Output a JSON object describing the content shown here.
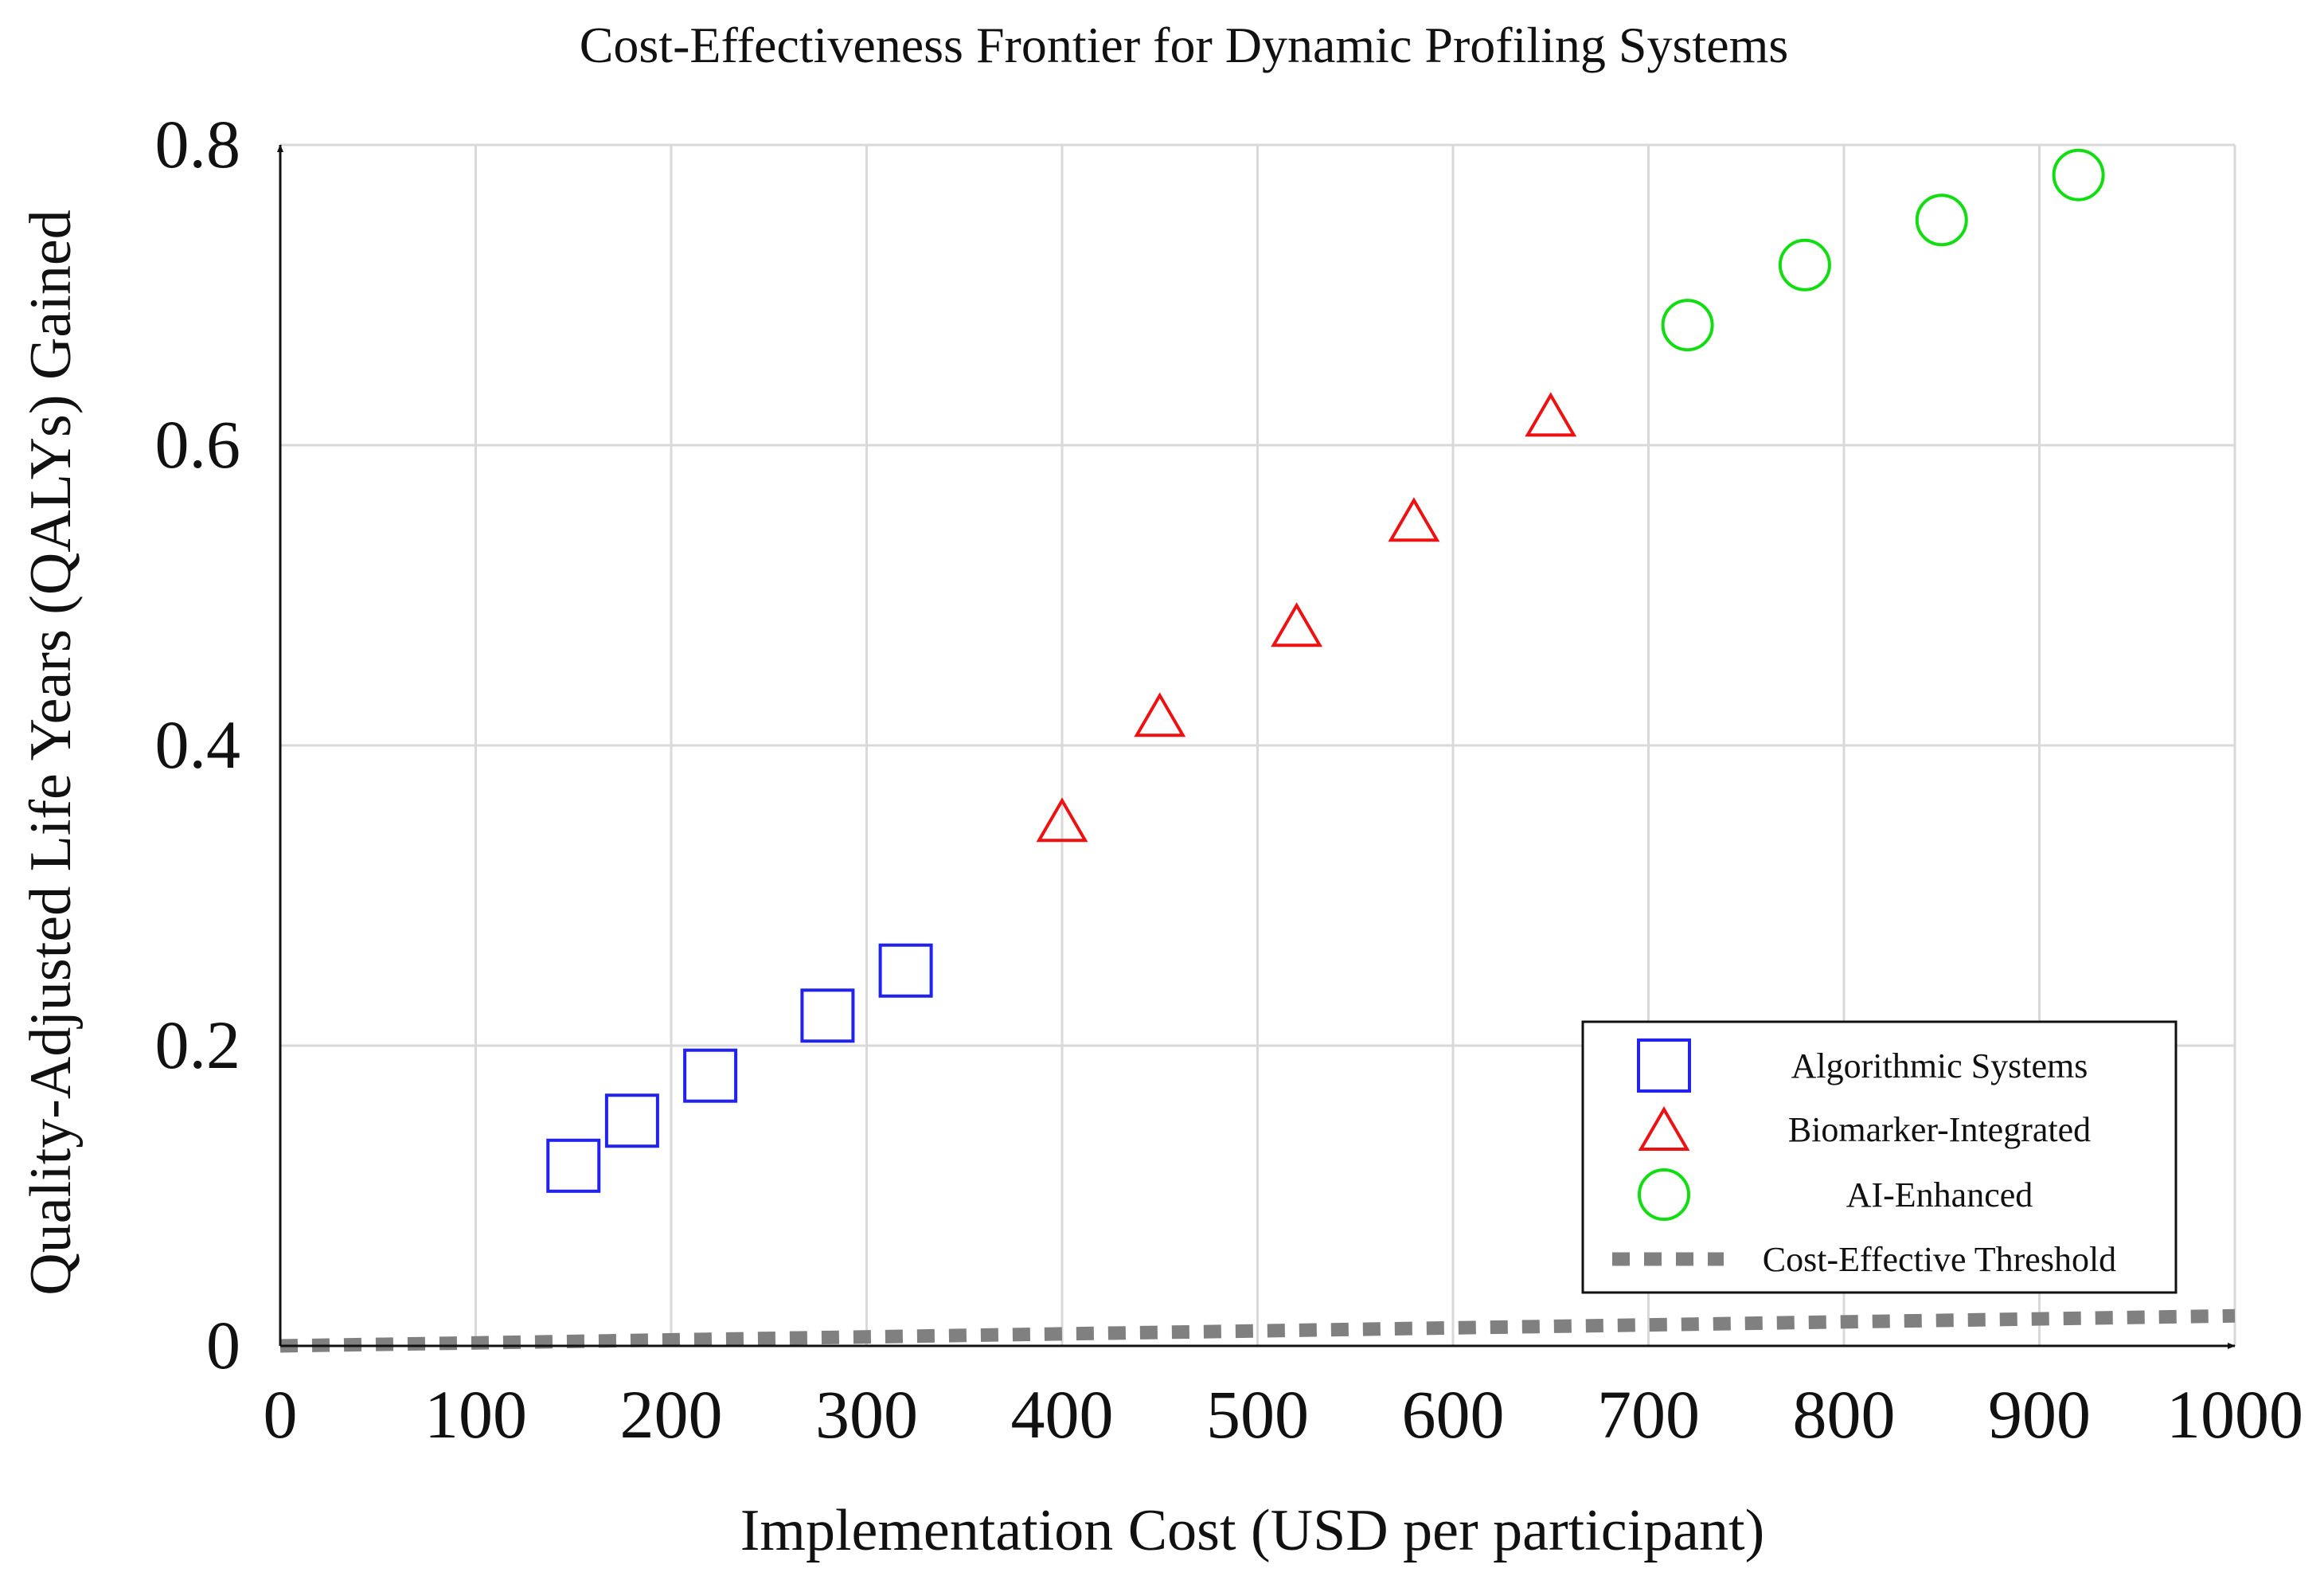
{
  "chart_data": {
    "type": "scatter",
    "title": "Cost-Effectiveness Frontier for Dynamic Profiling Systems",
    "xlabel": "Implementation Cost (USD per participant)",
    "ylabel": "Quality-Adjusted Life Years (QALYs) Gained",
    "xlim": [
      0,
      1000
    ],
    "ylim": [
      0,
      0.8
    ],
    "x_ticks": [
      0,
      100,
      200,
      300,
      400,
      500,
      600,
      700,
      800,
      900,
      1000
    ],
    "y_ticks": [
      0,
      0.2,
      0.4,
      0.6,
      0.8
    ],
    "x_tick_labels": [
      "0",
      "100",
      "200",
      "300",
      "400",
      "500",
      "600",
      "700",
      "800",
      "900",
      "1000"
    ],
    "y_tick_labels": [
      "0",
      "0.2",
      "0.4",
      "0.6",
      "0.8"
    ],
    "grid": true,
    "legend_position": "bottom-right",
    "series": [
      {
        "name": "Algorithmic Systems",
        "marker": "square",
        "color": "#2222ee",
        "points": [
          {
            "x": 150,
            "y": 0.12
          },
          {
            "x": 180,
            "y": 0.15
          },
          {
            "x": 220,
            "y": 0.18
          },
          {
            "x": 280,
            "y": 0.22
          },
          {
            "x": 320,
            "y": 0.25
          }
        ]
      },
      {
        "name": "Biomarker-Integrated",
        "marker": "triangle",
        "color": "#ee1111",
        "points": [
          {
            "x": 400,
            "y": 0.35
          },
          {
            "x": 450,
            "y": 0.42
          },
          {
            "x": 520,
            "y": 0.48
          },
          {
            "x": 580,
            "y": 0.55
          },
          {
            "x": 650,
            "y": 0.62
          }
        ]
      },
      {
        "name": "AI-Enhanced",
        "marker": "circle",
        "color": "#11dd11",
        "points": [
          {
            "x": 720,
            "y": 0.68
          },
          {
            "x": 780,
            "y": 0.72
          },
          {
            "x": 850,
            "y": 0.75
          },
          {
            "x": 920,
            "y": 0.78
          }
        ]
      },
      {
        "name": "Cost-Effective Threshold",
        "marker": "dashed-line",
        "color": "#808080",
        "points": [
          {
            "x": 0,
            "y": 0
          },
          {
            "x": 1000,
            "y": 0.02
          }
        ]
      }
    ]
  }
}
